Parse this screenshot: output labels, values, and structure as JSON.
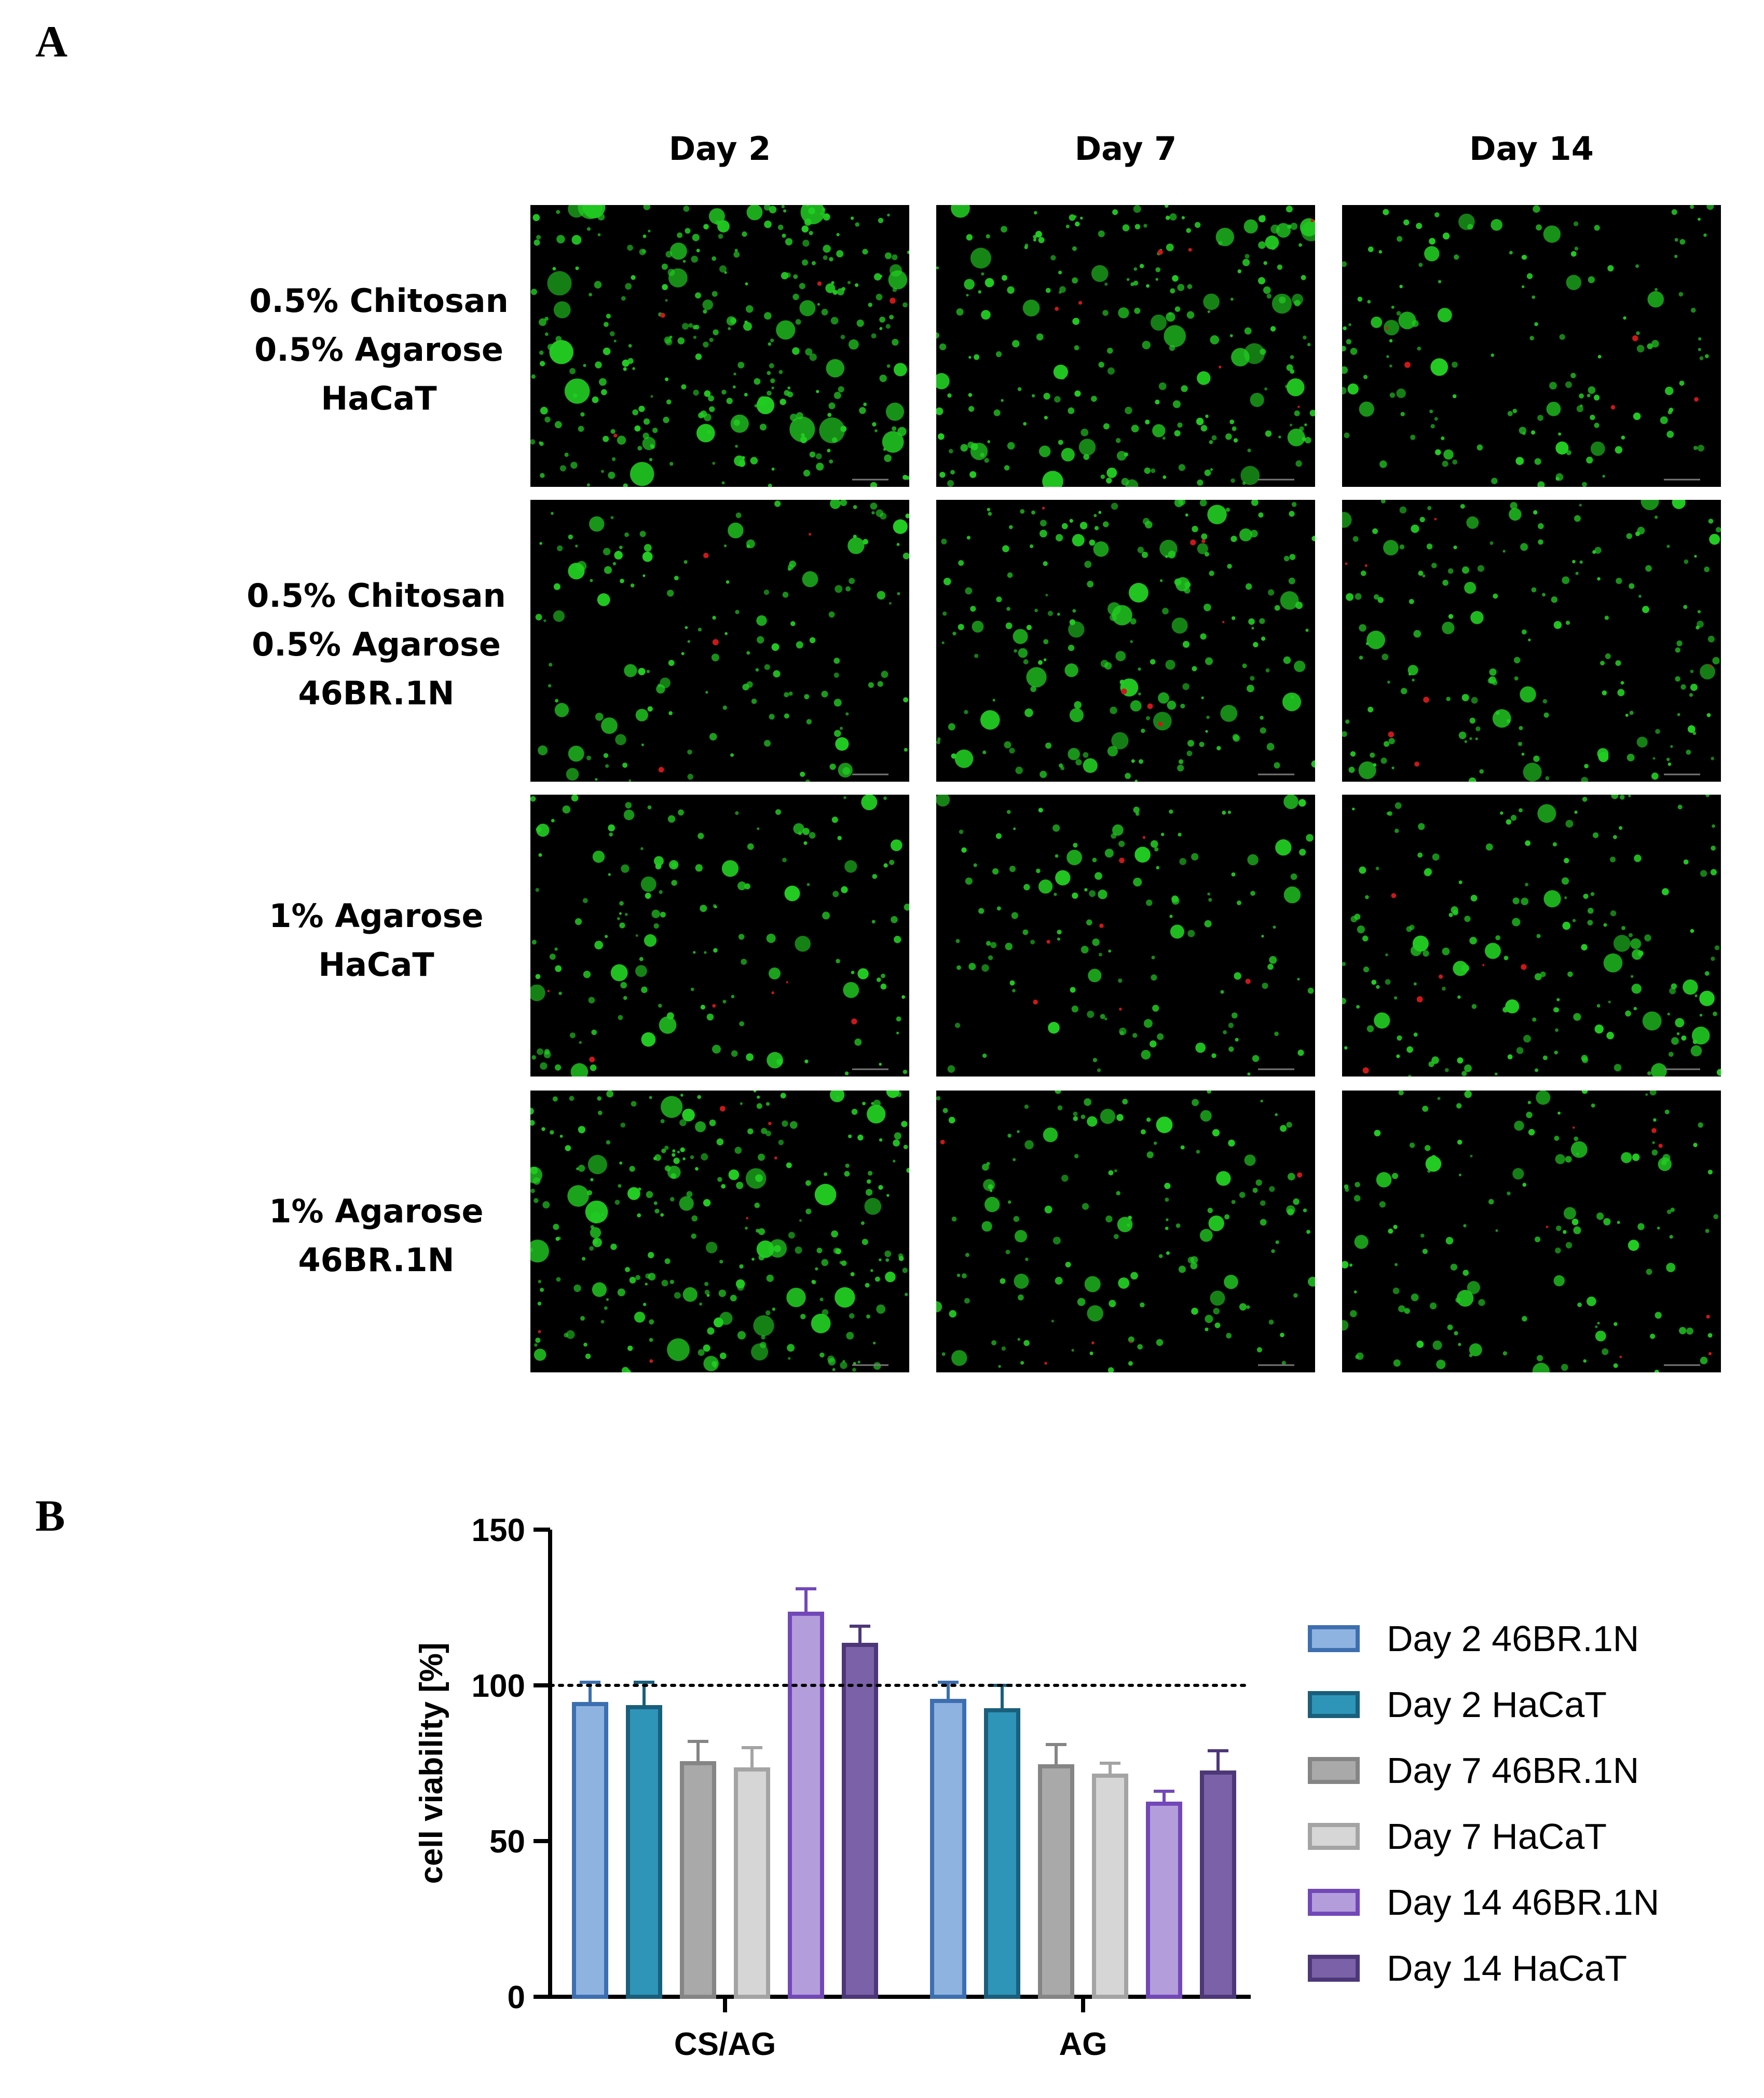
{
  "panel_a": {
    "letter": "A",
    "columns": [
      "Day 2",
      "Day 7",
      "Day 14"
    ],
    "rows": [
      {
        "lines": [
          "0.5% Chitosan",
          "0.5% Agarose",
          "HaCaT"
        ],
        "density": [
          1.0,
          0.7,
          0.35
        ]
      },
      {
        "lines": [
          "0.5% Chitosan",
          "0.5% Agarose",
          "46BR.1N"
        ],
        "density": [
          0.35,
          0.55,
          0.45
        ]
      },
      {
        "lines": [
          "1% Agarose",
          "HaCaT"
        ],
        "density": [
          0.35,
          0.3,
          0.45
        ]
      },
      {
        "lines": [
          "1% Agarose",
          "46BR.1N"
        ],
        "density": [
          0.85,
          0.35,
          0.3
        ]
      }
    ],
    "colors": {
      "live": "#22cc22",
      "dead": "#cc1818",
      "background": "#000000"
    }
  },
  "panel_b": {
    "letter": "B",
    "chart_data": {
      "type": "bar",
      "categories": [
        "CS/AG",
        "AG"
      ],
      "ylabel": "cell viability [%]",
      "xlabel": "",
      "ylim": [
        0,
        150
      ],
      "yticks": [
        0,
        50,
        100,
        150
      ],
      "reference_line": 100,
      "legend_position": "right",
      "series": [
        {
          "name": "Day 2 46BR.1N",
          "values": [
            94,
            95
          ],
          "errors": [
            7,
            6
          ],
          "fill": "#8fb3e0",
          "stroke": "#3d6fb0"
        },
        {
          "name": "Day 2 HaCaT",
          "values": [
            93,
            92
          ],
          "errors": [
            8,
            8
          ],
          "fill": "#2e95b8",
          "stroke": "#1a5f7c"
        },
        {
          "name": "Day 7 46BR.1N",
          "values": [
            75,
            74
          ],
          "errors": [
            7,
            7
          ],
          "fill": "#a9a9a9",
          "stroke": "#858585"
        },
        {
          "name": "Day 7 HaCaT",
          "values": [
            73,
            71
          ],
          "errors": [
            7,
            4
          ],
          "fill": "#d6d6d6",
          "stroke": "#a4a4a4"
        },
        {
          "name": "Day 14 46BR.1N",
          "values": [
            123,
            62
          ],
          "errors": [
            8,
            4
          ],
          "fill": "#b39ddb",
          "stroke": "#7248b8"
        },
        {
          "name": "Day 14 HaCaT",
          "values": [
            113,
            72
          ],
          "errors": [
            6,
            7
          ],
          "fill": "#7b62a8",
          "stroke": "#4d3778"
        }
      ]
    }
  }
}
